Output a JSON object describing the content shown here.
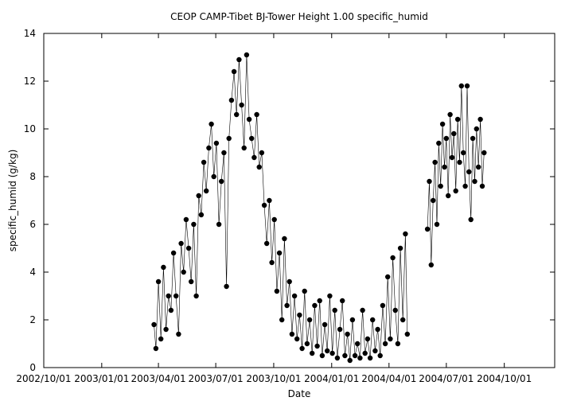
{
  "chart_data": {
    "type": "scatter",
    "title": "CEOP CAMP-Tibet BJ-Tower Height 1.00 specific_humid",
    "xlabel": "Date",
    "ylabel": "specific_humid (g/kg)",
    "x_axis": {
      "min": "2002-10-01",
      "max": "2004-12-20",
      "ticks": [
        {
          "value": "2002-10-01",
          "label": "2002/10/01"
        },
        {
          "value": "2003-01-01",
          "label": "2003/01/01"
        },
        {
          "value": "2003-04-01",
          "label": "2003/04/01"
        },
        {
          "value": "2003-07-01",
          "label": "2003/07/01"
        },
        {
          "value": "2003-10-01",
          "label": "2003/10/01"
        },
        {
          "value": "2004-01-01",
          "label": "2004/01/01"
        },
        {
          "value": "2004-04-01",
          "label": "2004/04/01"
        },
        {
          "value": "2004-07-01",
          "label": "2004/07/01"
        },
        {
          "value": "2004-10-01",
          "label": "2004/10/01"
        }
      ]
    },
    "y_axis": {
      "min": 0,
      "max": 14,
      "ticks": [
        0,
        2,
        4,
        6,
        8,
        10,
        12,
        14
      ]
    },
    "grid": false,
    "legend": "none",
    "marker_color": "#000000",
    "series": [
      {
        "style": "points-connected-by-thin-line",
        "points": [
          [
            "2003-03-25",
            1.8
          ],
          [
            "2003-03-28",
            0.8
          ],
          [
            "2003-04-01",
            3.6
          ],
          [
            "2003-04-05",
            1.2
          ],
          [
            "2003-04-09",
            4.2
          ],
          [
            "2003-04-13",
            1.6
          ],
          [
            "2003-04-17",
            3.0
          ],
          [
            "2003-04-21",
            2.4
          ],
          [
            "2003-04-25",
            4.8
          ],
          [
            "2003-04-29",
            3.0
          ],
          [
            "2003-05-03",
            1.4
          ],
          [
            "2003-05-07",
            5.2
          ],
          [
            "2003-05-11",
            4.0
          ],
          [
            "2003-05-15",
            6.2
          ],
          [
            "2003-05-19",
            5.0
          ],
          [
            "2003-05-23",
            3.6
          ],
          [
            "2003-05-27",
            6.0
          ],
          [
            "2003-05-31",
            3.0
          ],
          [
            "2003-06-04",
            7.2
          ],
          [
            "2003-06-08",
            6.4
          ],
          [
            "2003-06-12",
            8.6
          ],
          [
            "2003-06-16",
            7.4
          ],
          [
            "2003-06-20",
            9.2
          ],
          [
            "2003-06-24",
            10.2
          ],
          [
            "2003-06-28",
            8.0
          ],
          [
            "2003-07-02",
            9.4
          ],
          [
            "2003-07-06",
            6.0
          ],
          [
            "2003-07-10",
            7.8
          ],
          [
            "2003-07-14",
            9.0
          ],
          [
            "2003-07-18",
            3.4
          ],
          [
            "2003-07-22",
            9.6
          ],
          [
            "2003-07-26",
            11.2
          ],
          [
            "2003-07-30",
            12.4
          ],
          [
            "2003-08-03",
            10.6
          ],
          [
            "2003-08-07",
            12.9
          ],
          [
            "2003-08-11",
            11.0
          ],
          [
            "2003-08-15",
            9.2
          ],
          [
            "2003-08-19",
            13.1
          ],
          [
            "2003-08-23",
            10.4
          ],
          [
            "2003-08-27",
            9.6
          ],
          [
            "2003-08-31",
            8.8
          ],
          [
            "2003-09-04",
            10.6
          ],
          [
            "2003-09-08",
            8.4
          ],
          [
            "2003-09-12",
            9.0
          ],
          [
            "2003-09-16",
            6.8
          ],
          [
            "2003-09-20",
            5.2
          ],
          [
            "2003-09-24",
            7.0
          ],
          [
            "2003-09-28",
            4.4
          ],
          [
            "2003-10-02",
            6.2
          ],
          [
            "2003-10-06",
            3.2
          ],
          [
            "2003-10-10",
            4.8
          ],
          [
            "2003-10-14",
            2.0
          ],
          [
            "2003-10-18",
            5.4
          ],
          [
            "2003-10-22",
            2.6
          ],
          [
            "2003-10-26",
            3.6
          ],
          [
            "2003-10-30",
            1.4
          ],
          [
            "2003-11-03",
            3.0
          ],
          [
            "2003-11-07",
            1.2
          ],
          [
            "2003-11-11",
            2.2
          ],
          [
            "2003-11-15",
            0.8
          ],
          [
            "2003-11-19",
            3.2
          ],
          [
            "2003-11-23",
            1.0
          ],
          [
            "2003-11-27",
            2.0
          ],
          [
            "2003-12-01",
            0.6
          ],
          [
            "2003-12-05",
            2.6
          ],
          [
            "2003-12-09",
            0.9
          ],
          [
            "2003-12-13",
            2.8
          ],
          [
            "2003-12-17",
            0.5
          ],
          [
            "2003-12-21",
            1.8
          ],
          [
            "2003-12-25",
            0.7
          ],
          [
            "2003-12-29",
            3.0
          ],
          [
            "2004-01-02",
            0.6
          ],
          [
            "2004-01-06",
            2.4
          ],
          [
            "2004-01-10",
            0.4
          ],
          [
            "2004-01-14",
            1.6
          ],
          [
            "2004-01-18",
            2.8
          ],
          [
            "2004-01-22",
            0.5
          ],
          [
            "2004-01-26",
            1.4
          ],
          [
            "2004-01-30",
            0.3
          ],
          [
            "2004-02-03",
            2.0
          ],
          [
            "2004-02-07",
            0.5
          ],
          [
            "2004-02-11",
            1.0
          ],
          [
            "2004-02-15",
            0.4
          ],
          [
            "2004-02-19",
            2.4
          ],
          [
            "2004-02-23",
            0.6
          ],
          [
            "2004-02-27",
            1.2
          ],
          [
            "2004-03-02",
            0.4
          ],
          [
            "2004-03-06",
            2.0
          ],
          [
            "2004-03-10",
            0.7
          ],
          [
            "2004-03-14",
            1.6
          ],
          [
            "2004-03-18",
            0.5
          ],
          [
            "2004-03-22",
            2.6
          ],
          [
            "2004-03-26",
            1.0
          ],
          [
            "2004-03-30",
            3.8
          ],
          [
            "2004-04-03",
            1.2
          ],
          [
            "2004-04-07",
            4.6
          ],
          [
            "2004-04-11",
            2.4
          ],
          [
            "2004-04-15",
            1.0
          ],
          [
            "2004-04-19",
            5.0
          ],
          [
            "2004-04-23",
            2.0
          ],
          [
            "2004-04-27",
            5.6
          ],
          [
            "2004-04-30",
            1.4
          ],
          [
            "2004-06-01",
            5.8
          ],
          [
            "2004-06-04",
            7.8
          ],
          [
            "2004-06-07",
            4.3
          ],
          [
            "2004-06-10",
            7.0
          ],
          [
            "2004-06-13",
            8.6
          ],
          [
            "2004-06-16",
            6.0
          ],
          [
            "2004-06-19",
            9.4
          ],
          [
            "2004-06-22",
            7.6
          ],
          [
            "2004-06-25",
            10.2
          ],
          [
            "2004-06-28",
            8.4
          ],
          [
            "2004-07-01",
            9.6
          ],
          [
            "2004-07-04",
            7.2
          ],
          [
            "2004-07-07",
            10.6
          ],
          [
            "2004-07-10",
            8.8
          ],
          [
            "2004-07-13",
            9.8
          ],
          [
            "2004-07-16",
            7.4
          ],
          [
            "2004-07-19",
            10.4
          ],
          [
            "2004-07-22",
            8.6
          ],
          [
            "2004-07-25",
            11.8
          ],
          [
            "2004-07-28",
            9.0
          ],
          [
            "2004-07-31",
            7.6
          ],
          [
            "2004-08-03",
            11.8
          ],
          [
            "2004-08-06",
            8.2
          ],
          [
            "2004-08-09",
            6.2
          ],
          [
            "2004-08-12",
            9.6
          ],
          [
            "2004-08-15",
            7.8
          ],
          [
            "2004-08-18",
            10.0
          ],
          [
            "2004-08-21",
            8.4
          ],
          [
            "2004-08-24",
            10.4
          ],
          [
            "2004-08-27",
            7.6
          ],
          [
            "2004-08-30",
            9.0
          ]
        ]
      }
    ]
  }
}
